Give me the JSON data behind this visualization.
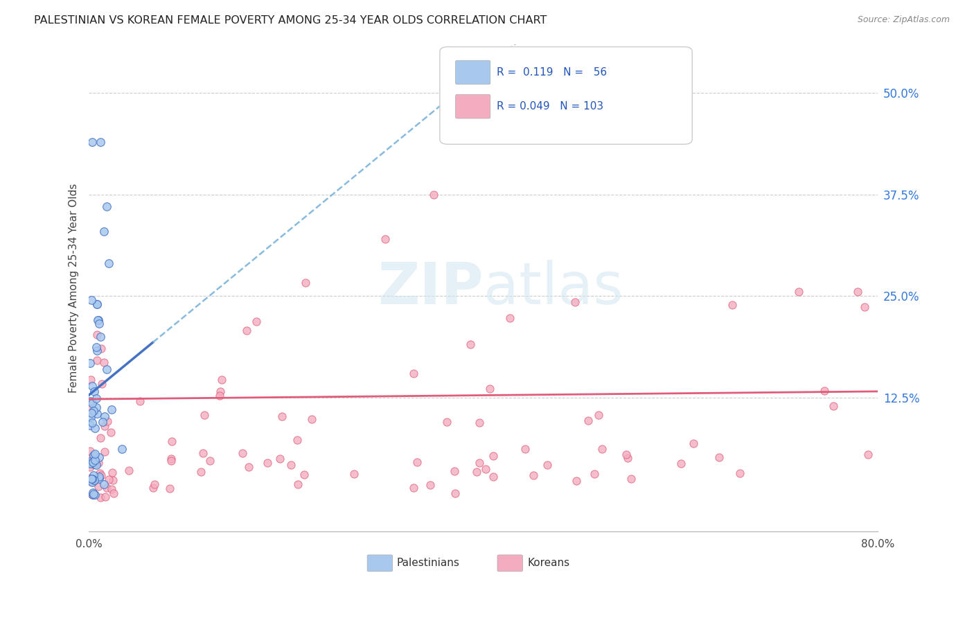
{
  "title": "PALESTINIAN VS KOREAN FEMALE POVERTY AMONG 25-34 YEAR OLDS CORRELATION CHART",
  "source": "Source: ZipAtlas.com",
  "ylabel": "Female Poverty Among 25-34 Year Olds",
  "ytick_labels": [
    "50.0%",
    "37.5%",
    "25.0%",
    "12.5%"
  ],
  "ytick_values": [
    0.5,
    0.375,
    0.25,
    0.125
  ],
  "xmin": 0.0,
  "xmax": 0.8,
  "ymin": -0.04,
  "ymax": 0.56,
  "color_palestinian": "#a8c8ee",
  "color_korean": "#f4adc0",
  "color_trendline_pal": "#4472c4",
  "color_trendline_kor": "#e05c7a",
  "color_dashed": "#88bbdd",
  "watermark_zip": "ZIP",
  "watermark_atlas": "atlas",
  "legend_text1": "R =  0.119   N =   56",
  "legend_text2": "R = 0.049   N = 103"
}
